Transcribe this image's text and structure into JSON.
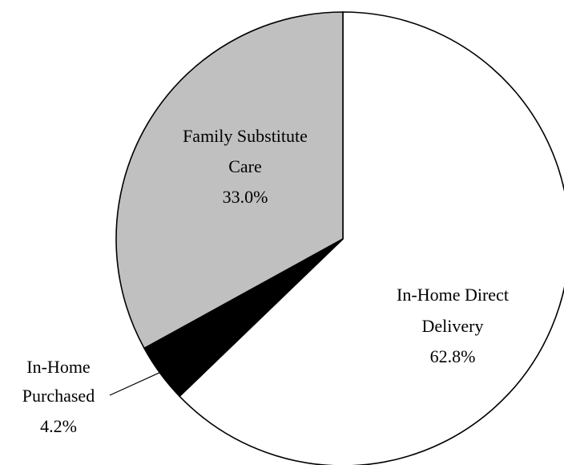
{
  "chart_data": {
    "type": "pie",
    "title": "",
    "start_angle_deg": 0,
    "direction": "clockwise",
    "slices": [
      {
        "label_lines": [
          "In-Home Direct",
          "Delivery"
        ],
        "value_label": "62.8%",
        "value": 62.8,
        "color": "#ffffff"
      },
      {
        "label_lines": [
          "In-Home",
          "Purchased"
        ],
        "value_label": "4.2%",
        "value": 4.2,
        "color": "#000000"
      },
      {
        "label_lines": [
          "Family Substitute",
          "Care"
        ],
        "value_label": "33.0%",
        "value": 33.0,
        "color": "#c0c0c0"
      }
    ],
    "legend": "none",
    "label_placement": [
      "inside",
      "outside-left-with-leader",
      "inside"
    ]
  }
}
